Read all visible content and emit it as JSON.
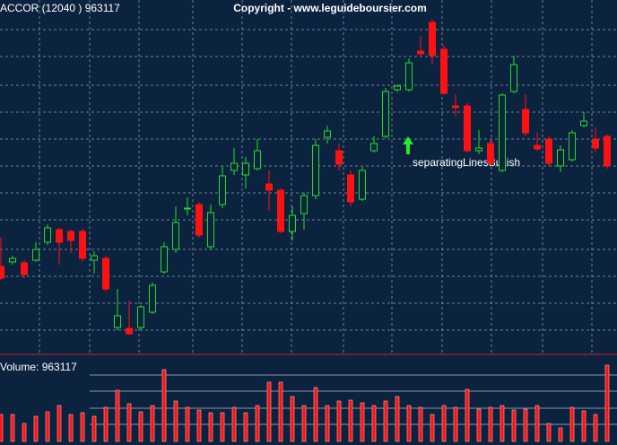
{
  "copyright": "Copyright - www.leguideboursier.com",
  "chart_data": [
    {
      "type": "candlestick",
      "title": "ACCOR (12040 ) 963117",
      "annotation": "separatingLinesBullish",
      "up_color": "#22dd22",
      "down_color": "#ff1111",
      "grid": true,
      "ylim": [
        5,
        400
      ],
      "open": [
        103,
        108,
        107,
        110,
        130,
        144,
        142,
        142,
        110,
        112,
        35,
        34,
        35,
        52,
        97,
        122,
        167,
        172,
        125,
        172,
        210,
        205,
        212,
        195,
        188,
        142,
        162,
        182,
        247,
        232,
        205,
        178,
        232,
        248,
        300,
        300,
        343,
        375,
        345,
        282,
        282,
        232,
        240,
        210,
        298,
        278,
        238,
        245,
        215,
        222,
        260,
        245,
        248
      ],
      "high": [
        135,
        115,
        110,
        130,
        150,
        146,
        144,
        145,
        120,
        115,
        78,
        65,
        60,
        85,
        130,
        170,
        180,
        175,
        172,
        215,
        235,
        225,
        245,
        210,
        190,
        170,
        185,
        245,
        260,
        240,
        210,
        214,
        248,
        302,
        306,
        335,
        360,
        378,
        350,
        295,
        285,
        255,
        245,
        296,
        338,
        295,
        252,
        248,
        238,
        255,
        275,
        258,
        250
      ],
      "low": [
        88,
        105,
        90,
        108,
        127,
        105,
        118,
        108,
        95,
        75,
        32,
        27,
        32,
        50,
        95,
        118,
        160,
        135,
        122,
        168,
        205,
        190,
        210,
        165,
        140,
        132,
        144,
        178,
        240,
        210,
        170,
        176,
        230,
        246,
        297,
        298,
        338,
        328,
        294,
        270,
        230,
        228,
        215,
        208,
        296,
        248,
        232,
        215,
        208,
        220,
        258,
        230,
        212
      ],
      "close": [
        90,
        112,
        94,
        122,
        146,
        130,
        132,
        112,
        115,
        78,
        48,
        28,
        58,
        82,
        125,
        152,
        168,
        138,
        163,
        204,
        218,
        218,
        232,
        188,
        142,
        160,
        182,
        238,
        254,
        217,
        175,
        210,
        240,
        298,
        304,
        330,
        340,
        338,
        296,
        280,
        232,
        235,
        218,
        294,
        328,
        252,
        234,
        218,
        233,
        252,
        265,
        235,
        215
      ]
    },
    {
      "type": "bar",
      "title": "Volume: 963117",
      "color": "#ff1111",
      "ylim": [
        0,
        92
      ],
      "values": [
        30,
        30,
        20,
        28,
        33,
        40,
        30,
        32,
        28,
        38,
        57,
        42,
        33,
        40,
        80,
        45,
        38,
        35,
        32,
        32,
        38,
        32,
        40,
        66,
        66,
        50,
        40,
        60,
        40,
        45,
        46,
        43,
        40,
        45,
        50,
        40,
        38,
        30,
        40,
        38,
        58,
        36,
        38,
        40,
        35,
        36,
        40,
        20,
        15,
        38,
        34,
        30,
        85
      ]
    }
  ]
}
